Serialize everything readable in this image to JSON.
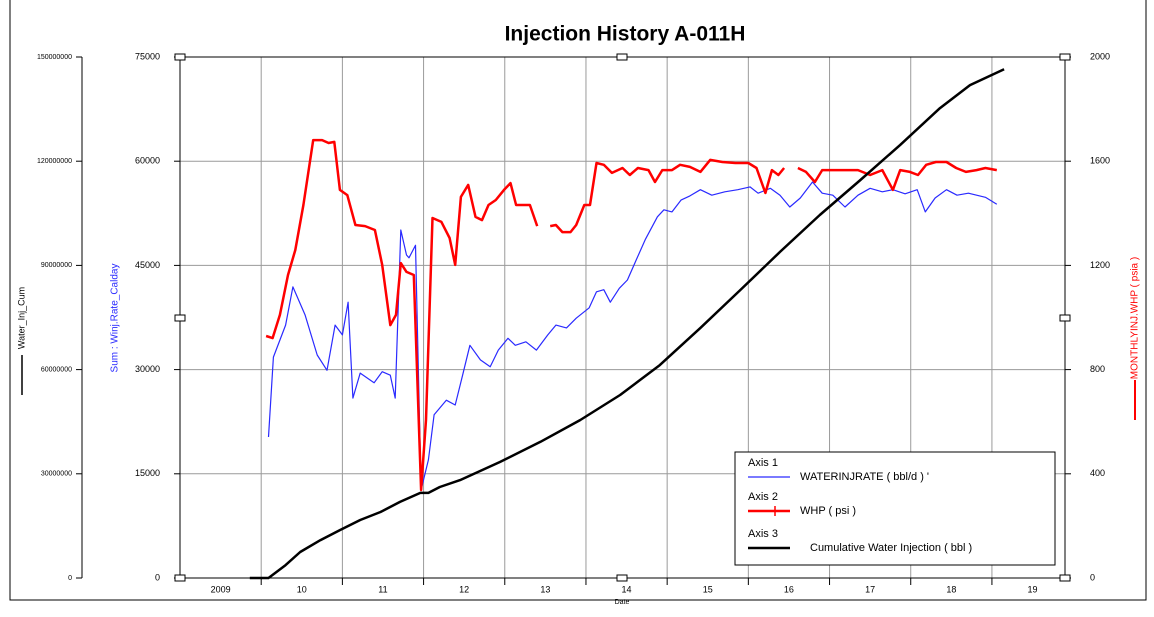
{
  "chart_data": {
    "type": "line",
    "title": "Injection History A-011H",
    "xlabel": "Date",
    "ylabel": "Sum : Winj.Rate_Calday",
    "y2label": "MONTHLYINJ.WHP ( psia )",
    "y3label": "Water_Inj_Cum",
    "xlim": [
      2009.0,
      2019.9
    ],
    "xticks": [
      {
        "value": 2009.5,
        "label": "2009"
      },
      {
        "value": 2010.5,
        "label": "10"
      },
      {
        "value": 2011.5,
        "label": "11"
      },
      {
        "value": 2012.5,
        "label": "12"
      },
      {
        "value": 2013.5,
        "label": "13"
      },
      {
        "value": 2014.5,
        "label": "14"
      },
      {
        "value": 2015.5,
        "label": "15"
      },
      {
        "value": 2016.5,
        "label": "16"
      },
      {
        "value": 2017.5,
        "label": "17"
      },
      {
        "value": 2018.5,
        "label": "18"
      },
      {
        "value": 2019.5,
        "label": "19"
      }
    ],
    "xgrid": [
      2010,
      2011,
      2012,
      2013,
      2014,
      2015,
      2016,
      2017,
      2018,
      2019
    ],
    "ylim": [
      0,
      75000
    ],
    "yticks": [
      0,
      15000,
      30000,
      45000,
      60000,
      75000
    ],
    "y2lim": [
      0,
      2000
    ],
    "y2ticks": [
      0,
      400,
      800,
      1200,
      1600,
      2000
    ],
    "y3lim": [
      0,
      150000000
    ],
    "y3ticks": [
      0,
      30000000,
      60000000,
      90000000,
      120000000,
      150000000
    ],
    "grid": true,
    "series": [
      {
        "name": "WATERINJRATE ( bbl/d ) '",
        "group": "Axis 1",
        "color": "#2a2aff",
        "axis": "y",
        "x": [
          2010.09,
          2010.15,
          2010.3,
          2010.39,
          2010.54,
          2010.69,
          2010.81,
          2010.91,
          2011.0,
          2011.07,
          2011.13,
          2011.22,
          2011.39,
          2011.49,
          2011.59,
          2011.65,
          2011.72,
          2011.79,
          2011.82,
          2011.9,
          2011.97,
          2012.06,
          2012.13,
          2012.28,
          2012.39,
          2012.48,
          2012.57,
          2012.7,
          2012.82,
          2012.92,
          2013.04,
          2013.13,
          2013.26,
          2013.39,
          2013.53,
          2013.63,
          2013.76,
          2013.88,
          2014.04,
          2014.13,
          2014.22,
          2014.3,
          2014.41,
          2014.51,
          2014.62,
          2014.73,
          2014.88,
          2014.96,
          2015.06,
          2015.17,
          2015.28,
          2015.41,
          2015.55,
          2015.71,
          2015.87,
          2016.02,
          2016.12,
          2016.27,
          2016.39,
          2016.51,
          2016.64,
          2016.79,
          2016.91,
          2017.04,
          2017.19,
          2017.35,
          2017.5,
          2017.65,
          2017.78,
          2017.93,
          2018.08,
          2018.18,
          2018.3,
          2018.44,
          2018.57,
          2018.71,
          2018.92,
          2019.06
        ],
        "values": [
          20300,
          31800,
          36400,
          41900,
          37900,
          32100,
          29900,
          36400,
          35000,
          39700,
          25900,
          29500,
          28100,
          29700,
          29200,
          25900,
          50100,
          46500,
          46100,
          47900,
          12700,
          17000,
          23500,
          25600,
          24900,
          29200,
          33500,
          31400,
          30400,
          32800,
          34500,
          33500,
          34000,
          32800,
          35000,
          36400,
          36000,
          37400,
          38900,
          41200,
          41500,
          39700,
          41700,
          42900,
          45800,
          48700,
          52000,
          53000,
          52700,
          54400,
          55000,
          55900,
          55100,
          55600,
          55900,
          56300,
          55400,
          56100,
          55100,
          53400,
          54700,
          57000,
          55400,
          55100,
          53400,
          55100,
          56100,
          55600,
          55900,
          55300,
          55900,
          52700,
          54700,
          55900,
          55100,
          55400,
          54800,
          53800
        ]
      },
      {
        "name": "WHP ( psi )",
        "group": "Axis 2",
        "color": "#ff0000",
        "axis": "y2",
        "x": [
          2010.06,
          2010.14,
          2010.23,
          2010.33,
          2010.42,
          2010.52,
          2010.64,
          2010.75,
          2010.83,
          2010.9,
          2010.97,
          2011.06,
          2011.16,
          2011.28,
          2011.4,
          2011.49,
          2011.59,
          2011.66,
          2011.72,
          2011.79,
          2011.88,
          2011.97,
          2012.03,
          2012.11,
          2012.22,
          2012.32,
          2012.39,
          2012.46,
          2012.55,
          2012.64,
          2012.72,
          2012.8,
          2012.89,
          2012.99,
          2013.07,
          2013.14,
          2013.26,
          2013.31,
          2013.4,
          2013.47,
          2013.56,
          2013.63,
          2013.71,
          2013.81,
          2013.88,
          2013.98,
          2014.05,
          2014.13,
          2014.22,
          2014.32,
          2014.45,
          2014.54,
          2014.64,
          2014.77,
          2014.85,
          2014.94,
          2015.06,
          2015.16,
          2015.28,
          2015.41,
          2015.53,
          2015.68,
          2015.84,
          2016.0,
          2016.1,
          2016.21,
          2016.29,
          2016.37,
          2016.44,
          2016.53,
          2016.61,
          2016.71,
          2016.82,
          2016.91,
          2017.03,
          2017.19,
          2017.35,
          2017.5,
          2017.65,
          2017.78,
          2017.87,
          2017.99,
          2018.09,
          2018.19,
          2018.31,
          2018.44,
          2018.56,
          2018.68,
          2018.81,
          2018.92,
          2019.06
        ],
        "values": [
          929,
          921,
          1010,
          1163,
          1259,
          1432,
          1681,
          1681,
          1670,
          1674,
          1490,
          1470,
          1355,
          1351,
          1336,
          1202,
          971,
          1010,
          1209,
          1175,
          1163,
          338,
          607,
          1382,
          1367,
          1305,
          1202,
          1463,
          1509,
          1386,
          1374,
          1432,
          1451,
          1490,
          1516,
          1432,
          1432,
          1432,
          1351,
          null,
          1351,
          1355,
          1328,
          1328,
          1355,
          1432,
          1432,
          1593,
          1586,
          1555,
          1574,
          1547,
          1574,
          1566,
          1520,
          1566,
          1566,
          1586,
          1578,
          1559,
          1605,
          1597,
          1593,
          1593,
          1574,
          1478,
          1566,
          1547,
          1574,
          null,
          1574,
          1559,
          1520,
          1566,
          1566,
          1566,
          1566,
          1547,
          1566,
          1490,
          1566,
          1559,
          1547,
          1586,
          1597,
          1597,
          1574,
          1559,
          1566,
          1574,
          1566
        ]
      },
      {
        "name": "Cumulative Water Injection ( bbl )",
        "group": "Axis 3",
        "color": "#000000",
        "axis": "y3",
        "x": [
          2009.86,
          2010.09,
          2010.3,
          2010.48,
          2010.73,
          2010.97,
          2011.22,
          2011.47,
          2011.71,
          2011.96,
          2012.06,
          2012.2,
          2012.45,
          2012.94,
          2013.44,
          2013.93,
          2014.42,
          2014.91,
          2015.41,
          2015.9,
          2016.39,
          2016.88,
          2017.38,
          2017.87,
          2018.36,
          2018.73,
          2019.15
        ],
        "values": [
          0,
          0,
          3700000,
          7500000,
          10900000,
          13800000,
          16700000,
          19000000,
          21900000,
          24500000,
          24500000,
          26200000,
          28200000,
          33400000,
          39200000,
          45500000,
          52700000,
          61300000,
          72000000,
          82900000,
          93900000,
          104500000,
          114600000,
          124700000,
          135300000,
          141900000,
          146500000
        ]
      }
    ]
  }
}
